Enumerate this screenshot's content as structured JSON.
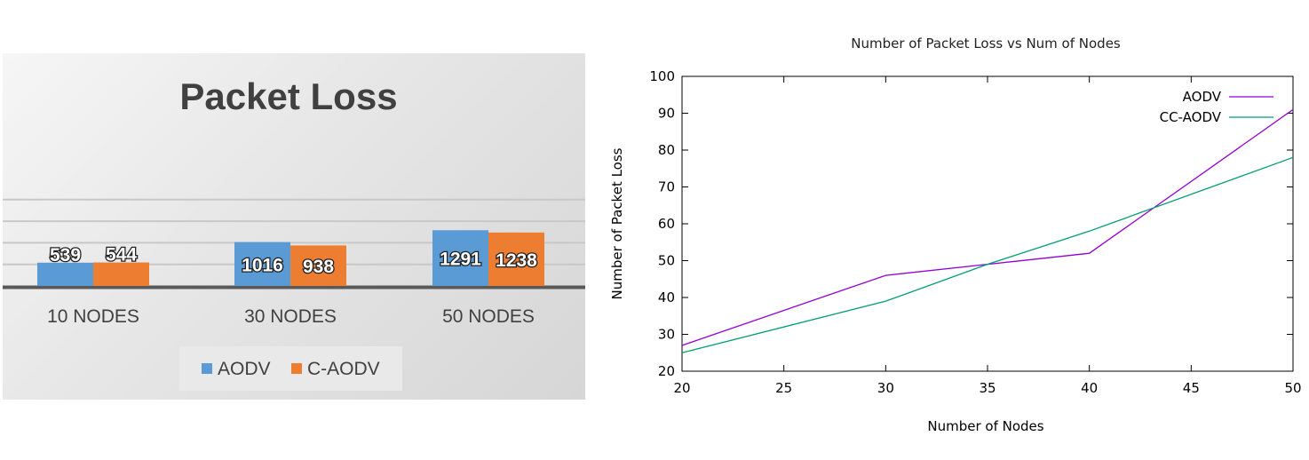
{
  "chart_data": [
    {
      "type": "bar",
      "title": "Packet Loss",
      "categories": [
        "10 NODES",
        "30 NODES",
        "50 NODES"
      ],
      "series": [
        {
          "name": "AODV",
          "values": [
            539,
            1016,
            1291
          ],
          "color": "#5b9bd5"
        },
        {
          "name": "C-AODV",
          "values": [
            544,
            938,
            1238
          ],
          "color": "#ed7d31"
        }
      ],
      "legend": "bottom",
      "grid": true
    },
    {
      "type": "line",
      "title": "Number of Packet Loss vs Num of Nodes",
      "xlabel": "Number of Nodes",
      "ylabel": "Number of Packet Loss",
      "xlim": [
        20,
        50
      ],
      "ylim": [
        20,
        100
      ],
      "xticks": [
        20,
        25,
        30,
        35,
        40,
        45,
        50
      ],
      "yticks": [
        20,
        30,
        40,
        50,
        60,
        70,
        80,
        90,
        100
      ],
      "x": [
        20,
        30,
        35,
        40,
        50
      ],
      "series": [
        {
          "name": "AODV",
          "values": [
            27,
            46,
            49,
            52,
            91
          ],
          "color": "#9400d3"
        },
        {
          "name": "CC-AODV",
          "values": [
            25,
            39,
            49,
            58,
            78
          ],
          "color": "#009e73"
        }
      ],
      "legend": "top-right",
      "grid": false
    }
  ]
}
